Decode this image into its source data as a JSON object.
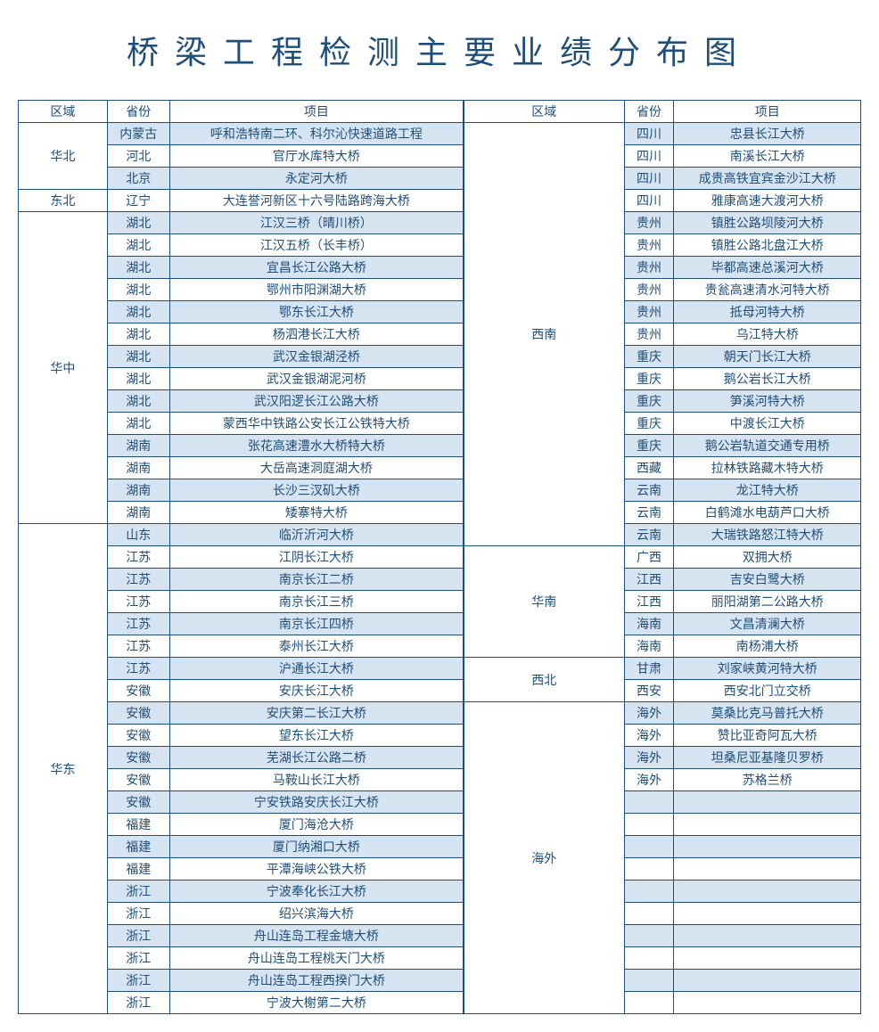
{
  "title": "桥梁工程检测主要业绩分布图",
  "headers": {
    "region": "区域",
    "province": "省份",
    "project": "项目"
  },
  "colors": {
    "border": "#1f4e79",
    "text": "#1f4e79",
    "shade": "#d6e3f0",
    "background": "#ffffff"
  },
  "leftTable": {
    "regions": [
      {
        "name": "华北",
        "rows": [
          {
            "province": "内蒙古",
            "project": "呼和浩特南二环、科尔沁快速道路工程",
            "shaded": true
          },
          {
            "province": "河北",
            "project": "官厅水库特大桥",
            "shaded": false
          },
          {
            "province": "北京",
            "project": "永定河大桥",
            "shaded": true
          }
        ]
      },
      {
        "name": "东北",
        "rows": [
          {
            "province": "辽宁",
            "project": "大连誉河新区十六号陆路跨海大桥",
            "shaded": false
          }
        ]
      },
      {
        "name": "华中",
        "rows": [
          {
            "province": "湖北",
            "project": "江汉三桥（晴川桥）",
            "shaded": true
          },
          {
            "province": "湖北",
            "project": "江汉五桥（长丰桥）",
            "shaded": false
          },
          {
            "province": "湖北",
            "project": "宜昌长江公路大桥",
            "shaded": true
          },
          {
            "province": "湖北",
            "project": "鄂州市阳渊湖大桥",
            "shaded": false
          },
          {
            "province": "湖北",
            "project": "鄂东长江大桥",
            "shaded": true
          },
          {
            "province": "湖北",
            "project": "杨泗港长江大桥",
            "shaded": false
          },
          {
            "province": "湖北",
            "project": "武汉金银湖泾桥",
            "shaded": true
          },
          {
            "province": "湖北",
            "project": "武汉金银湖泥河桥",
            "shaded": false
          },
          {
            "province": "湖北",
            "project": "武汉阳逻长江公路大桥",
            "shaded": true
          },
          {
            "province": "湖北",
            "project": "蒙西华中铁路公安长江公铁特大桥",
            "shaded": false
          },
          {
            "province": "湖南",
            "project": "张花高速澧水大桥特大桥",
            "shaded": true
          },
          {
            "province": "湖南",
            "project": "大岳高速洞庭湖大桥",
            "shaded": false
          },
          {
            "province": "湖南",
            "project": "长沙三汊矶大桥",
            "shaded": true
          },
          {
            "province": "湖南",
            "project": "矮寨特大桥",
            "shaded": false
          }
        ]
      },
      {
        "name": "华东",
        "rows": [
          {
            "province": "山东",
            "project": "临沂沂河大桥",
            "shaded": true
          },
          {
            "province": "江苏",
            "project": "江阴长江大桥",
            "shaded": false
          },
          {
            "province": "江苏",
            "project": "南京长江二桥",
            "shaded": true
          },
          {
            "province": "江苏",
            "project": "南京长江三桥",
            "shaded": false
          },
          {
            "province": "江苏",
            "project": "南京长江四桥",
            "shaded": true
          },
          {
            "province": "江苏",
            "project": "泰州长江大桥",
            "shaded": false
          },
          {
            "province": "江苏",
            "project": "沪通长江大桥",
            "shaded": true
          },
          {
            "province": "安徽",
            "project": "安庆长江大桥",
            "shaded": false
          },
          {
            "province": "安徽",
            "project": "安庆第二长江大桥",
            "shaded": true
          },
          {
            "province": "安徽",
            "project": "望东长江大桥",
            "shaded": false
          },
          {
            "province": "安徽",
            "project": "芜湖长江公路二桥",
            "shaded": true
          },
          {
            "province": "安徽",
            "project": "马鞍山长江大桥",
            "shaded": false
          },
          {
            "province": "安徽",
            "project": "宁安铁路安庆长江大桥",
            "shaded": true
          },
          {
            "province": "福建",
            "project": "厦门海沧大桥",
            "shaded": false
          },
          {
            "province": "福建",
            "project": "厦门纳湘口大桥",
            "shaded": true
          },
          {
            "province": "福建",
            "project": "平潭海峡公铁大桥",
            "shaded": false
          },
          {
            "province": "浙江",
            "project": "宁波奉化长江大桥",
            "shaded": true
          },
          {
            "province": "浙江",
            "project": "绍兴滨海大桥",
            "shaded": false
          },
          {
            "province": "浙江",
            "project": "舟山连岛工程金塘大桥",
            "shaded": true
          },
          {
            "province": "浙江",
            "project": "舟山连岛工程桃天门大桥",
            "shaded": false
          },
          {
            "province": "浙江",
            "project": "舟山连岛工程西揆门大桥",
            "shaded": true
          },
          {
            "province": "浙江",
            "project": "宁波大榭第二大桥",
            "shaded": false
          }
        ]
      }
    ]
  },
  "rightTable": {
    "regions": [
      {
        "name": "西南",
        "rows": [
          {
            "province": "四川",
            "project": "忠县长江大桥",
            "shaded": true
          },
          {
            "province": "四川",
            "project": "南溪长江大桥",
            "shaded": false
          },
          {
            "province": "四川",
            "project": "成贵高铁宜宾金沙江大桥",
            "shaded": true
          },
          {
            "province": "四川",
            "project": "雅康高速大渡河大桥",
            "shaded": false
          },
          {
            "province": "贵州",
            "project": "镇胜公路坝陵河大桥",
            "shaded": true
          },
          {
            "province": "贵州",
            "project": "镇胜公路北盘江大桥",
            "shaded": false
          },
          {
            "province": "贵州",
            "project": "毕都高速总溪河大桥",
            "shaded": true
          },
          {
            "province": "贵州",
            "project": "贵瓮高速清水河特大桥",
            "shaded": false
          },
          {
            "province": "贵州",
            "project": "抵母河特大桥",
            "shaded": true
          },
          {
            "province": "贵州",
            "project": "乌江特大桥",
            "shaded": false
          },
          {
            "province": "重庆",
            "project": "朝天门长江大桥",
            "shaded": true
          },
          {
            "province": "重庆",
            "project": "鹅公岩长江大桥",
            "shaded": false
          },
          {
            "province": "重庆",
            "project": "笋溪河特大桥",
            "shaded": true
          },
          {
            "province": "重庆",
            "project": "中渡长江大桥",
            "shaded": false
          },
          {
            "province": "重庆",
            "project": "鹅公岩轨道交通专用桥",
            "shaded": true
          },
          {
            "province": "西藏",
            "project": "拉林铁路藏木特大桥",
            "shaded": false
          },
          {
            "province": "云南",
            "project": "龙江特大桥",
            "shaded": true
          },
          {
            "province": "云南",
            "project": "白鹤滩水电葫芦口大桥",
            "shaded": false
          },
          {
            "province": "云南",
            "project": "大瑞铁路怒江特大桥",
            "shaded": true
          }
        ]
      },
      {
        "name": "华南",
        "rows": [
          {
            "province": "广西",
            "project": "双拥大桥",
            "shaded": false
          },
          {
            "province": "江西",
            "project": "吉安白鹭大桥",
            "shaded": true
          },
          {
            "province": "江西",
            "project": "丽阳湖第二公路大桥",
            "shaded": false
          },
          {
            "province": "海南",
            "project": "文昌清澜大桥",
            "shaded": true
          },
          {
            "province": "海南",
            "project": "南杨浦大桥",
            "shaded": false
          }
        ]
      },
      {
        "name": "西北",
        "rows": [
          {
            "province": "甘肃",
            "project": "刘家峡黄河特大桥",
            "shaded": true
          },
          {
            "province": "西安",
            "project": "西安北门立交桥",
            "shaded": false
          }
        ]
      },
      {
        "name": "海外",
        "rows": [
          {
            "province": "海外",
            "project": "莫桑比克马普托大桥",
            "shaded": true
          },
          {
            "province": "海外",
            "project": "赞比亚奇阿瓦大桥",
            "shaded": false
          },
          {
            "province": "海外",
            "project": "坦桑尼亚基隆贝罗桥",
            "shaded": true
          },
          {
            "province": "海外",
            "project": "苏格兰桥",
            "shaded": false
          },
          {
            "province": "",
            "project": "",
            "shaded": true
          },
          {
            "province": "",
            "project": "",
            "shaded": false
          },
          {
            "province": "",
            "project": "",
            "shaded": true
          },
          {
            "province": "",
            "project": "",
            "shaded": false
          },
          {
            "province": "",
            "project": "",
            "shaded": true
          },
          {
            "province": "",
            "project": "",
            "shaded": false
          },
          {
            "province": "",
            "project": "",
            "shaded": true
          },
          {
            "province": "",
            "project": "",
            "shaded": false
          },
          {
            "province": "",
            "project": "",
            "shaded": true
          },
          {
            "province": "",
            "project": "",
            "shaded": false
          }
        ]
      }
    ]
  }
}
